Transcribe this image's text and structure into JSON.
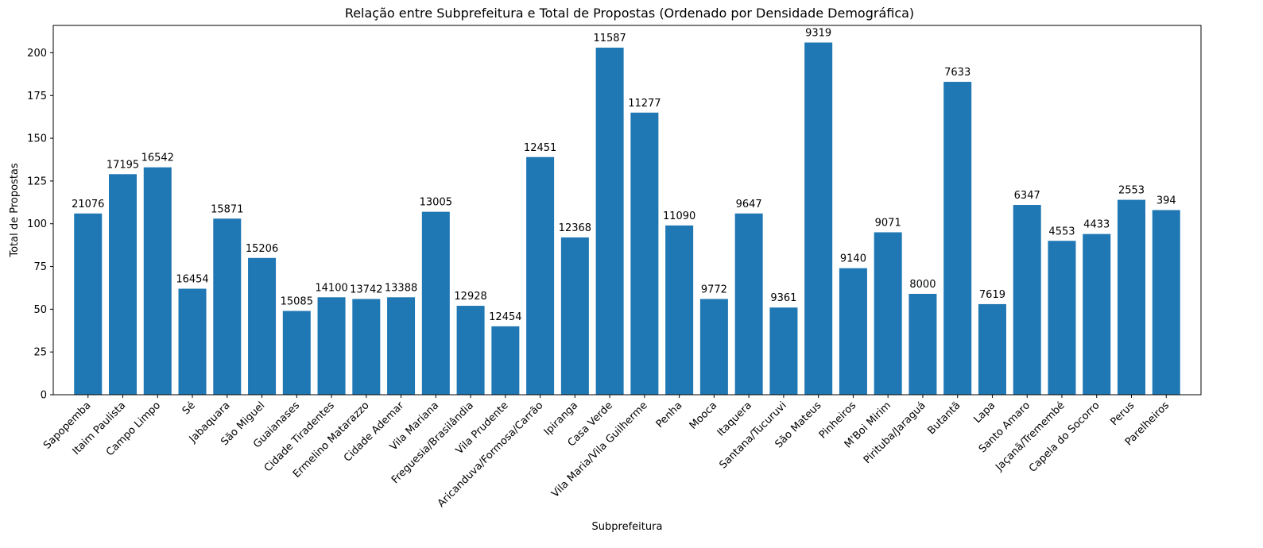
{
  "chart_data": {
    "type": "bar",
    "title": "Relação entre Subprefeitura e Total de Propostas (Ordenado por Densidade Demográfica)",
    "xlabel": "Subprefeitura",
    "ylabel": "Total de Propostas",
    "ylim": [
      0,
      216
    ],
    "yticks": [
      0,
      25,
      50,
      75,
      100,
      125,
      150,
      175,
      200
    ],
    "grid": false,
    "color": "#1f77b4",
    "categories": [
      "Sapopemba",
      "Itaim Paulista",
      "Campo Limpo",
      "Sé",
      "Jabaquara",
      "São Miguel",
      "Guaianases",
      "Cidade Tiradentes",
      "Ermelino Matarazzo",
      "Cidade Ademar",
      "Vila Mariana",
      "Freguesia/Brasilândia",
      "Vila Prudente",
      "Aricanduva/Formosa/Carrão",
      "Ipiranga",
      "Casa Verde",
      "Vila Maria/Vila Guilherme",
      "Penha",
      "Mooca",
      "Itaquera",
      "Santana/Tucuruvi",
      "São Mateus",
      "Pinheiros",
      "M'Boi Mirim",
      "Pirituba/Jaraguá",
      "Butantã",
      "Lapa",
      "Santo Amaro",
      "Jaçanã/Tremembé",
      "Capela do Socorro",
      "Perus",
      "Parelheiros"
    ],
    "values": [
      106,
      129,
      133,
      62,
      103,
      80,
      49,
      57,
      56,
      57,
      107,
      52,
      40,
      139,
      92,
      203,
      165,
      99,
      56,
      106,
      51,
      206,
      74,
      95,
      59,
      183,
      53,
      111,
      90,
      94,
      114,
      108
    ],
    "bar_labels": [
      "21076",
      "17195",
      "16542",
      "16454",
      "15871",
      "15206",
      "15085",
      "14100",
      "13742",
      "13388",
      "13005",
      "12928",
      "12454",
      "12451",
      "12368",
      "11587",
      "11277",
      "11090",
      "9772",
      "9647",
      "9361",
      "9319",
      "9140",
      "9071",
      "8000",
      "7633",
      "7619",
      "6347",
      "4553",
      "4433",
      "2553",
      "394"
    ]
  }
}
